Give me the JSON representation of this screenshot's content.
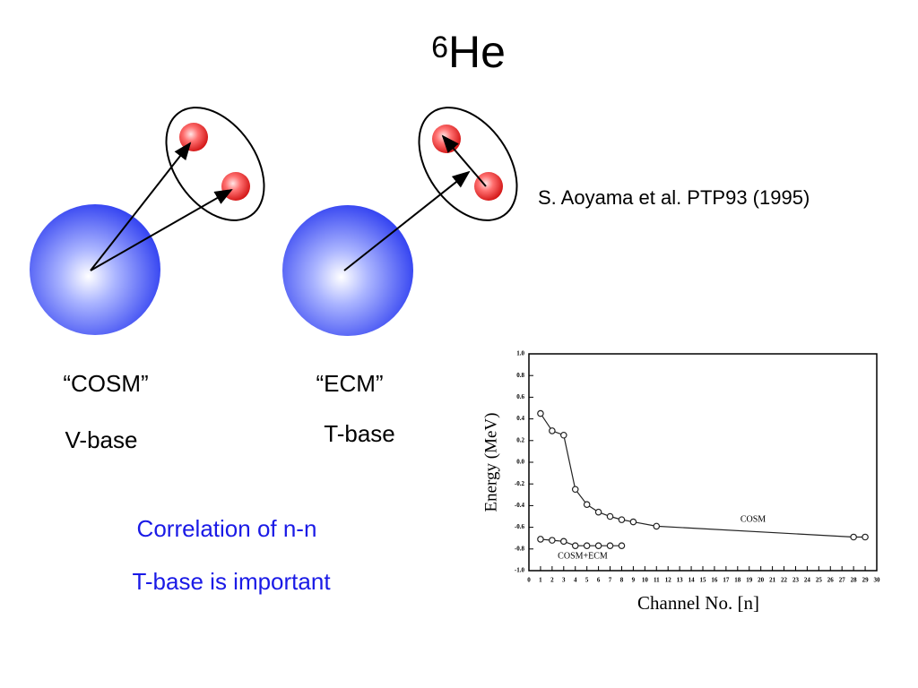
{
  "slide": {
    "title_sup": "6",
    "title": "He",
    "citation": "S. Aoyama et al. PTP93 (1995)",
    "left_name": "“COSM”",
    "left_base": "V-base",
    "right_name": "“ECM”",
    "right_base": "T-base",
    "note1": "Correlation of n-n",
    "note2": "T-base is important"
  },
  "chart_data": {
    "type": "line",
    "xlabel": "Channel No. [n]",
    "ylabel": "Energy   (MeV)",
    "xlim": [
      0,
      30
    ],
    "ylim": [
      -1,
      1
    ],
    "xticks": [
      0,
      1,
      2,
      3,
      4,
      5,
      6,
      7,
      8,
      9,
      10,
      11,
      12,
      13,
      14,
      15,
      16,
      17,
      18,
      19,
      20,
      21,
      22,
      23,
      24,
      25,
      26,
      27,
      28,
      29,
      30
    ],
    "yticks": [
      {
        "value": 1,
        "label": "1.0"
      },
      0.8,
      0.6,
      0.4,
      0.2,
      {
        "value": 0,
        "label": "0.0"
      },
      -0.2,
      -0.4,
      -0.6,
      -0.8,
      {
        "value": -1,
        "label": "-1.0"
      }
    ],
    "series": [
      {
        "name": "COSM",
        "color": "#222222",
        "x": [
          1,
          2,
          3,
          4,
          5,
          6,
          7,
          8,
          9,
          11,
          28,
          29
        ],
        "values": [
          0.45,
          0.29,
          0.25,
          -0.25,
          -0.39,
          -0.46,
          -0.5,
          -0.53,
          -0.55,
          -0.59,
          -0.69,
          -0.69
        ]
      },
      {
        "name": "COSM+ECM",
        "color": "#222222",
        "x": [
          1,
          2,
          3,
          4,
          5,
          6,
          7,
          8
        ],
        "values": [
          -0.71,
          -0.72,
          -0.73,
          -0.77,
          -0.77,
          -0.77,
          -0.77,
          -0.77
        ]
      }
    ]
  }
}
